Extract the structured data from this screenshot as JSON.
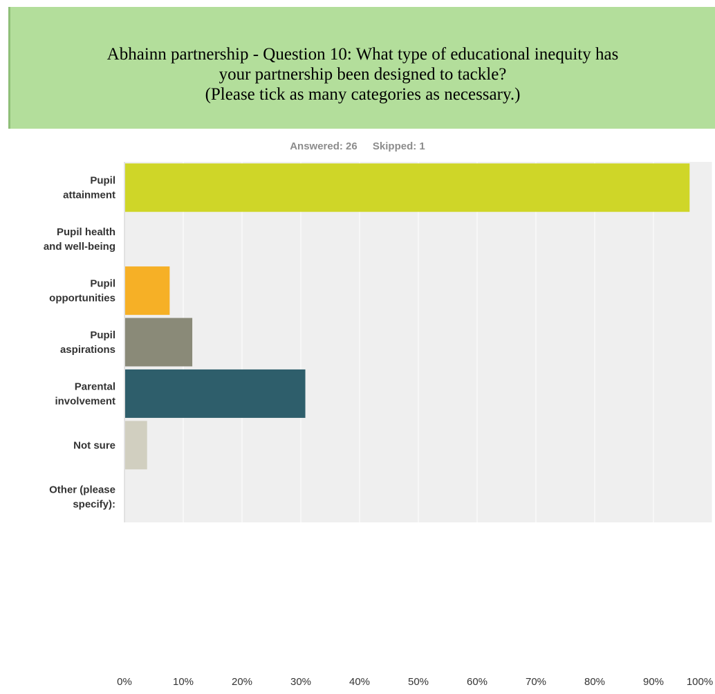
{
  "header": {
    "title_lines": [
      "Abhainn partnership - Question 10: What type of educational inequity has",
      "your partnership been designed to tackle?",
      "(Please tick as many categories as necessary.)"
    ]
  },
  "stats": {
    "answered": "Answered: 26",
    "skipped": "Skipped: 1"
  },
  "chart_data": {
    "type": "bar",
    "orientation": "horizontal",
    "categories": [
      [
        "Pupil",
        "attainment"
      ],
      [
        "Pupil health",
        "and well-being"
      ],
      [
        "Pupil",
        "opportunities"
      ],
      [
        "Pupil",
        "aspirations"
      ],
      [
        "Parental",
        "involvement"
      ],
      [
        "Not sure"
      ],
      [
        "Other (please",
        "specify):"
      ]
    ],
    "values": [
      96.15,
      0,
      7.69,
      11.54,
      30.77,
      3.85,
      0
    ],
    "colors": [
      "#cfd628",
      "#cfd628",
      "#f6b026",
      "#8a8a78",
      "#2e5e6b",
      "#d1cfc0",
      "#d1cfc0"
    ],
    "xlim": [
      0,
      100
    ],
    "x_ticks": [
      "0%",
      "10%",
      "20%",
      "30%",
      "40%",
      "50%",
      "60%",
      "70%",
      "80%",
      "90%",
      "100%"
    ],
    "grid": true,
    "plot_background": "#efefef",
    "grid_color": "#ffffff"
  }
}
